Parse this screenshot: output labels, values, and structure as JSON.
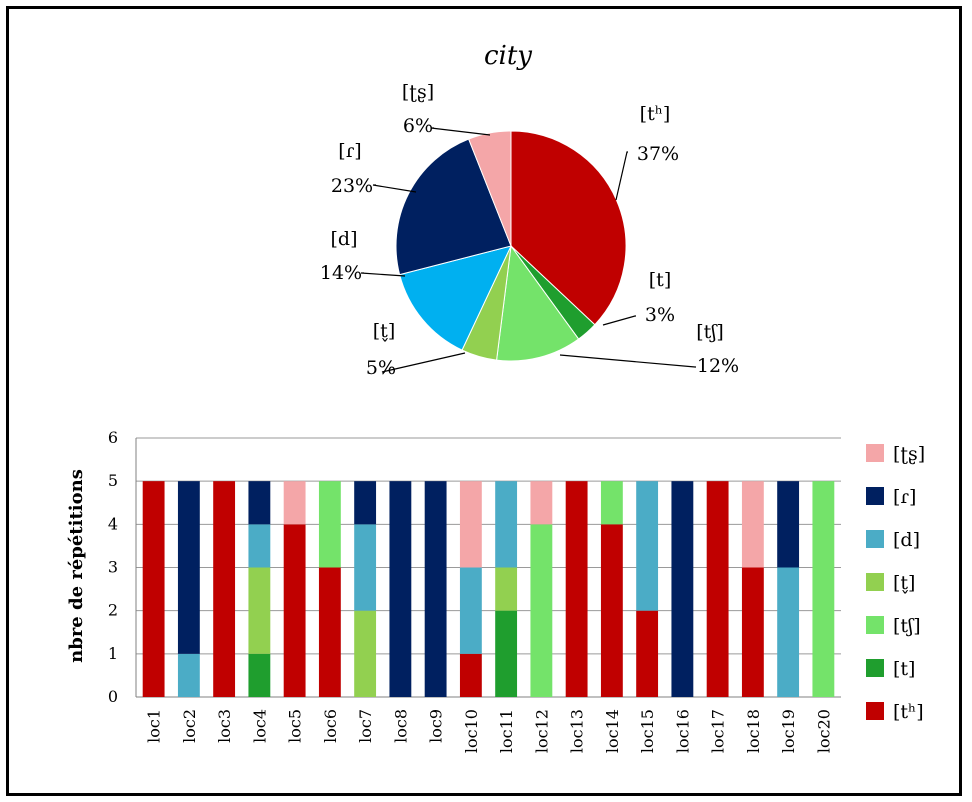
{
  "chart_data": [
    {
      "type": "pie",
      "title": "city",
      "slices": [
        {
          "name": "[tʰ]",
          "value": 37,
          "label": "37%",
          "color": "#c00000"
        },
        {
          "name": "[t]",
          "value": 3,
          "label": "3%",
          "color": "#1f9e2e"
        },
        {
          "name": "[tʃ]",
          "value": 12,
          "label": "12%",
          "color": "#74e36a"
        },
        {
          "name": "[t̬]",
          "value": 5,
          "label": "5%",
          "color": "#92d050"
        },
        {
          "name": "[d]",
          "value": 14,
          "label": "14%",
          "color": "#00b0f0"
        },
        {
          "name": "[ɾ]",
          "value": 23,
          "label": "23%",
          "color": "#002060"
        },
        {
          "name": "[ʈʂ]",
          "value": 6,
          "label": "6%",
          "color": "#f4a6a8"
        }
      ]
    },
    {
      "type": "bar",
      "stacked": true,
      "ylabel": "nbre de répétitions",
      "ylim": [
        0,
        6
      ],
      "yticks": [
        "0",
        "1",
        "2",
        "3",
        "4",
        "5",
        "6"
      ],
      "grid": true,
      "legend_position": "right",
      "categories": [
        "loc1",
        "loc2",
        "loc3",
        "loc4",
        "loc5",
        "loc6",
        "loc7",
        "loc8",
        "loc9",
        "loc10",
        "loc11",
        "loc12",
        "loc13",
        "loc14",
        "loc15",
        "loc16",
        "loc17",
        "loc18",
        "loc19",
        "loc20"
      ],
      "series": [
        {
          "name": "[tʰ]",
          "color": "#c00000",
          "values": [
            5,
            0,
            5,
            0,
            4,
            3,
            0,
            0,
            0,
            1,
            0,
            0,
            5,
            4,
            2,
            0,
            5,
            3,
            0,
            0
          ]
        },
        {
          "name": "[t]",
          "color": "#1f9e2e",
          "values": [
            0,
            0,
            0,
            1,
            0,
            0,
            0,
            0,
            0,
            0,
            2,
            0,
            0,
            0,
            0,
            0,
            0,
            0,
            0,
            0
          ]
        },
        {
          "name": "[tʃ]",
          "color": "#74e36a",
          "values": [
            0,
            0,
            0,
            0,
            0,
            2,
            0,
            0,
            0,
            0,
            0,
            4,
            0,
            1,
            0,
            0,
            0,
            0,
            0,
            5
          ]
        },
        {
          "name": "[t̬]",
          "color": "#92d050",
          "values": [
            0,
            0,
            0,
            2,
            0,
            0,
            2,
            0,
            0,
            0,
            1,
            0,
            0,
            0,
            0,
            0,
            0,
            0,
            0,
            0
          ]
        },
        {
          "name": "[d]",
          "color": "#4bacc6",
          "values": [
            0,
            1,
            0,
            1,
            0,
            0,
            2,
            0,
            0,
            2,
            2,
            0,
            0,
            0,
            3,
            0,
            0,
            0,
            3,
            0
          ]
        },
        {
          "name": "[ɾ]",
          "color": "#002060",
          "values": [
            0,
            4,
            0,
            1,
            0,
            0,
            1,
            5,
            5,
            0,
            0,
            0,
            0,
            0,
            0,
            5,
            0,
            0,
            2,
            0
          ]
        },
        {
          "name": "[ʈʂ]",
          "color": "#f4a6a8",
          "values": [
            0,
            0,
            0,
            0,
            1,
            0,
            0,
            0,
            0,
            2,
            0,
            1,
            0,
            0,
            0,
            0,
            0,
            2,
            0,
            0
          ]
        }
      ],
      "legend_order": [
        "[ʈʂ]",
        "[ɾ]",
        "[d]",
        "[t̬]",
        "[tʃ]",
        "[t]",
        "[tʰ]"
      ]
    }
  ]
}
